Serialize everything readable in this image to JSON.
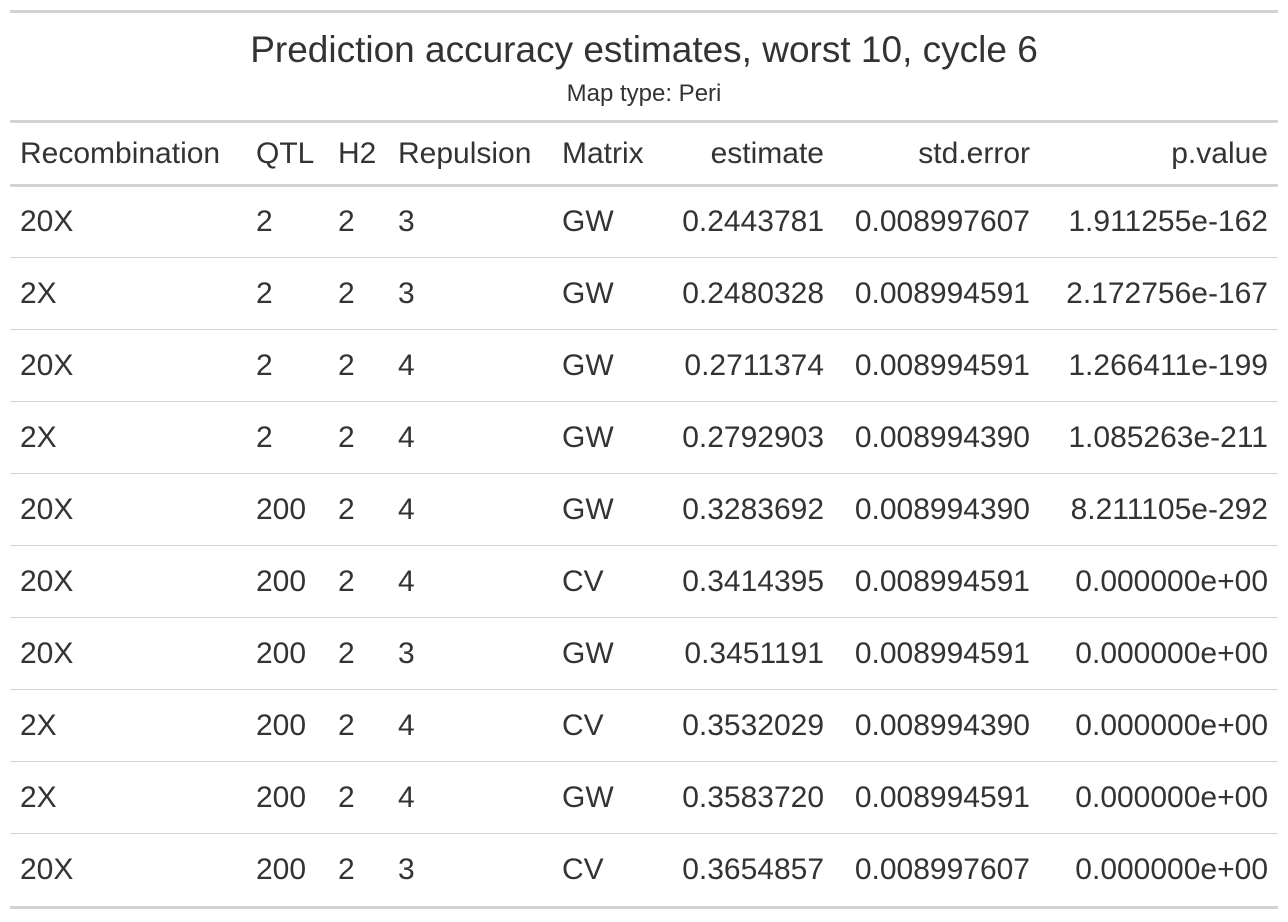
{
  "title": "Prediction accuracy estimates, worst 10, cycle 6",
  "subtitle": "Map type: Peri",
  "columns": [
    "Recombination",
    "QTL",
    "H2",
    "Repulsion",
    "Matrix",
    "estimate",
    "std.error",
    "p.value"
  ],
  "rows": [
    [
      "20X",
      "2",
      "2",
      "3",
      "GW",
      "0.2443781",
      "0.008997607",
      "1.911255e-162"
    ],
    [
      "2X",
      "2",
      "2",
      "3",
      "GW",
      "0.2480328",
      "0.008994591",
      "2.172756e-167"
    ],
    [
      "20X",
      "2",
      "2",
      "4",
      "GW",
      "0.2711374",
      "0.008994591",
      "1.266411e-199"
    ],
    [
      "2X",
      "2",
      "2",
      "4",
      "GW",
      "0.2792903",
      "0.008994390",
      "1.085263e-211"
    ],
    [
      "20X",
      "200",
      "2",
      "4",
      "GW",
      "0.3283692",
      "0.008994390",
      "8.211105e-292"
    ],
    [
      "20X",
      "200",
      "2",
      "4",
      "CV",
      "0.3414395",
      "0.008994591",
      "0.000000e+00"
    ],
    [
      "20X",
      "200",
      "2",
      "3",
      "GW",
      "0.3451191",
      "0.008994591",
      "0.000000e+00"
    ],
    [
      "2X",
      "200",
      "2",
      "4",
      "CV",
      "0.3532029",
      "0.008994390",
      "0.000000e+00"
    ],
    [
      "2X",
      "200",
      "2",
      "4",
      "GW",
      "0.3583720",
      "0.008994591",
      "0.000000e+00"
    ],
    [
      "20X",
      "200",
      "2",
      "3",
      "CV",
      "0.3654857",
      "0.008997607",
      "0.000000e+00"
    ]
  ]
}
